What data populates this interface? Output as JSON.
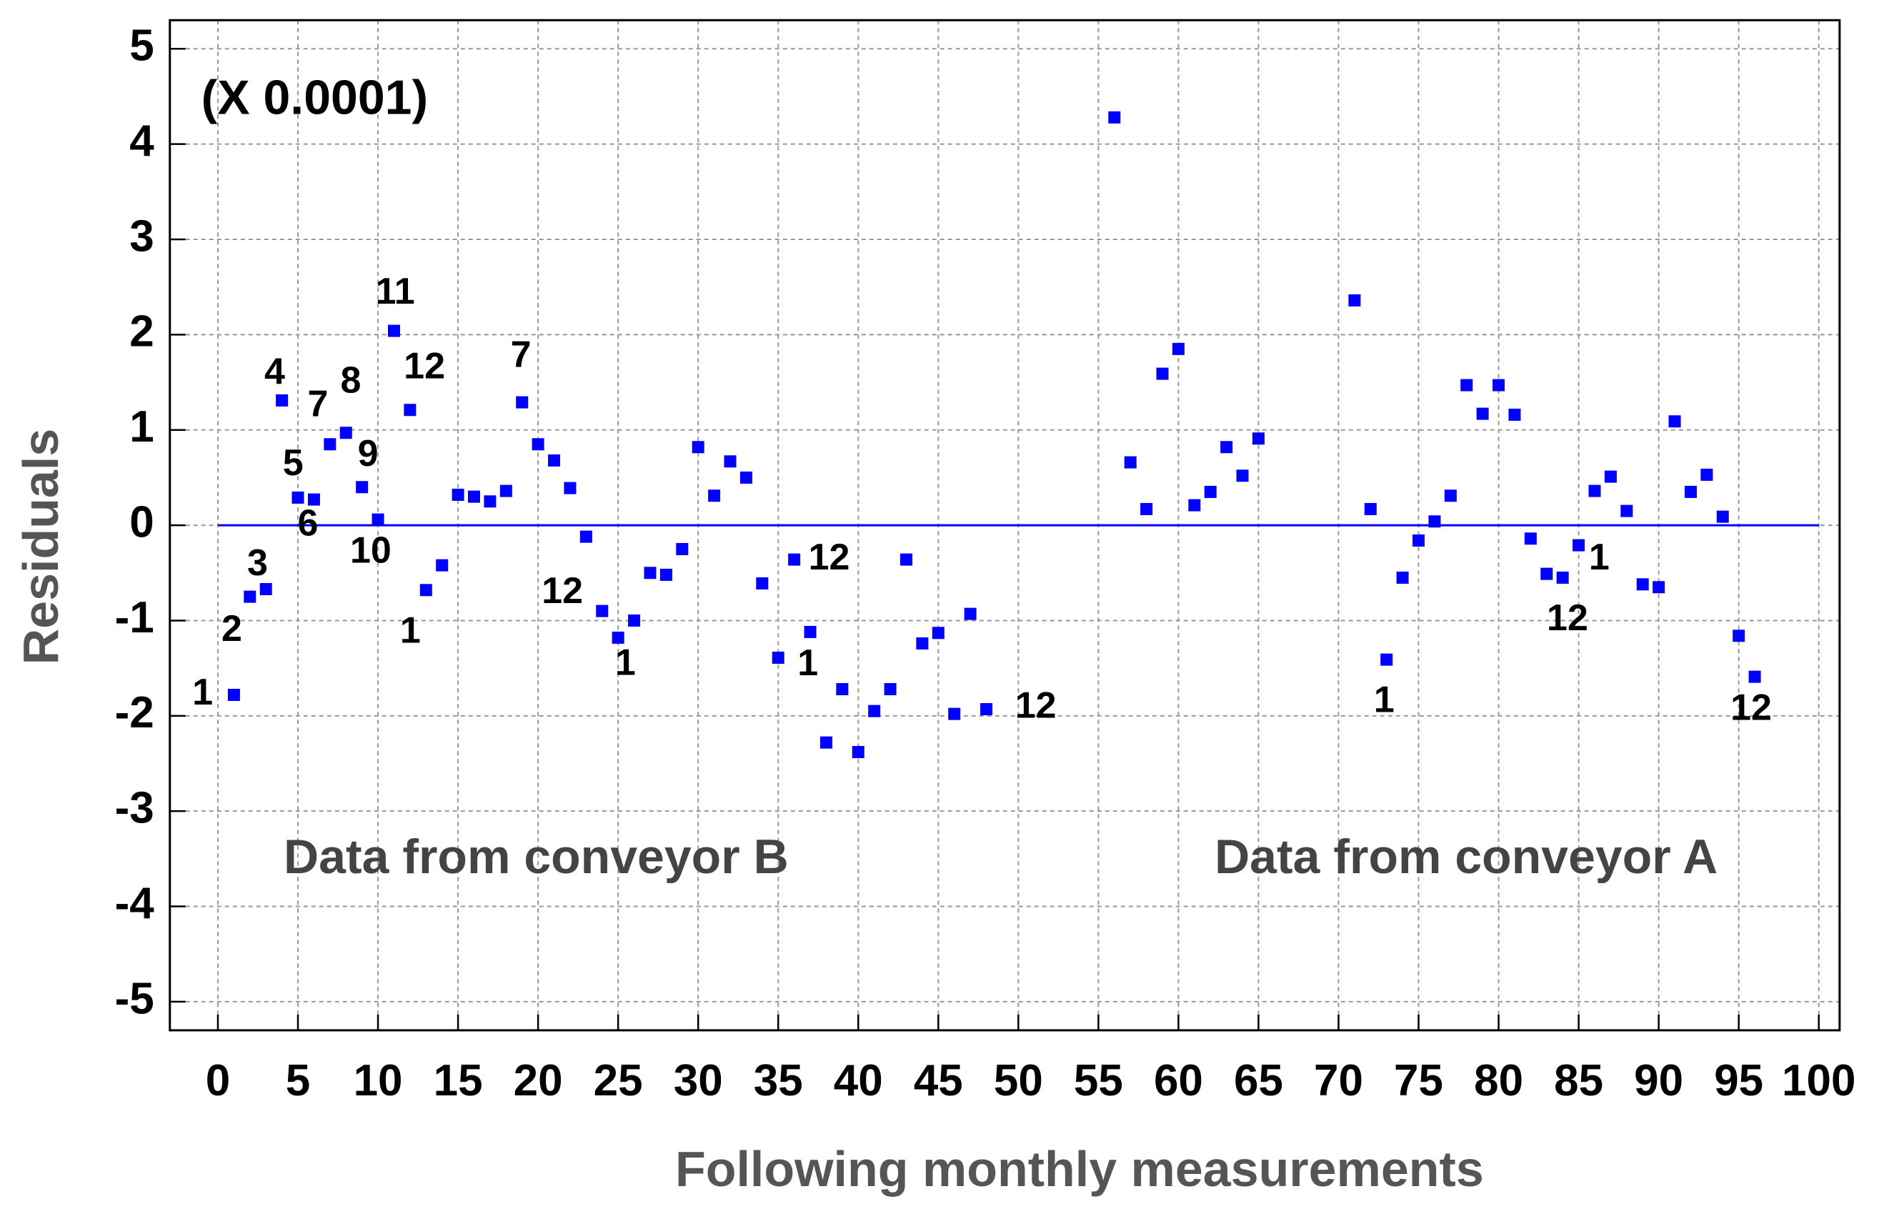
{
  "chart_data": {
    "type": "scatter",
    "xlabel": "Following monthly measurements",
    "ylabel": "Residuals",
    "annotations": [
      "(X 0.0001)",
      "Data from conveyor B",
      "Data from conveyor A"
    ],
    "xlim": [
      -3,
      101.3
    ],
    "ylim": [
      -5.3,
      5.3
    ],
    "xticks": [
      0,
      5,
      10,
      15,
      20,
      25,
      30,
      35,
      40,
      45,
      50,
      55,
      60,
      65,
      70,
      75,
      80,
      85,
      90,
      95,
      100
    ],
    "yticks": [
      -5,
      -4,
      -3,
      -2,
      -1,
      0,
      1,
      2,
      3,
      4,
      5
    ],
    "grid": true,
    "reference_line": {
      "y": 0,
      "xmin": 0,
      "xmax": 100,
      "color": "#0000ff"
    },
    "series": [
      {
        "color": "#0000ff",
        "x": [
          1,
          2,
          3,
          4,
          5,
          6,
          7,
          8,
          9,
          10,
          11,
          12,
          13,
          14,
          15,
          16,
          17,
          18,
          19,
          20,
          21,
          22,
          23,
          24,
          25,
          26,
          27,
          28,
          29,
          30,
          31,
          32,
          33,
          34,
          35,
          36,
          37,
          38,
          39,
          40,
          41,
          42,
          43,
          44,
          45,
          46,
          47,
          48,
          56,
          57,
          58,
          59,
          60,
          61,
          62,
          63,
          64,
          65,
          71,
          72,
          73,
          74,
          75,
          76,
          77,
          78,
          79,
          80,
          81,
          82,
          83,
          84,
          85,
          86,
          87,
          88,
          89,
          90,
          91,
          92,
          93,
          94,
          95,
          96
        ],
        "values": [
          -1.78,
          -0.75,
          -0.67,
          1.31,
          0.29,
          0.27,
          0.85,
          0.97,
          0.4,
          0.06,
          2.04,
          1.21,
          -0.68,
          -0.42,
          0.32,
          0.3,
          0.25,
          0.36,
          1.29,
          0.85,
          0.68,
          0.39,
          -0.12,
          -0.9,
          -1.18,
          -1.0,
          -0.5,
          -0.52,
          -0.25,
          0.82,
          0.31,
          0.67,
          0.5,
          -0.61,
          -1.39,
          -0.36,
          -1.12,
          -2.28,
          -1.72,
          -2.38,
          -1.95,
          -1.72,
          -0.36,
          -1.24,
          -1.13,
          -1.98,
          -0.93,
          -1.93,
          4.28,
          0.66,
          0.17,
          1.59,
          1.85,
          0.21,
          0.35,
          0.82,
          0.52,
          0.91,
          2.36,
          0.17,
          -1.41,
          -0.55,
          -0.16,
          0.04,
          0.31,
          1.47,
          1.17,
          1.47,
          1.16,
          -0.14,
          -0.51,
          -0.55,
          -0.21,
          0.36,
          0.51,
          0.15,
          -0.62,
          -0.65,
          1.09,
          0.35,
          0.53,
          0.09,
          -1.16,
          -1.59
        ],
        "point_labels": [
          "1",
          "2",
          "3",
          "4",
          "5",
          "6",
          "7",
          "8",
          "9",
          "10",
          "11",
          "12",
          "1",
          null,
          null,
          null,
          null,
          null,
          "7",
          null,
          null,
          null,
          null,
          "12",
          "1",
          null,
          null,
          null,
          null,
          null,
          null,
          null,
          null,
          null,
          null,
          "12",
          "1",
          null,
          null,
          null,
          null,
          null,
          null,
          null,
          null,
          null,
          null,
          "12",
          null,
          null,
          null,
          null,
          null,
          null,
          null,
          null,
          null,
          null,
          null,
          null,
          "1",
          null,
          null,
          null,
          null,
          null,
          null,
          null,
          null,
          null,
          null,
          "12",
          "1",
          null,
          null,
          null,
          null,
          null,
          null,
          null,
          null,
          null,
          null,
          "12"
        ]
      }
    ]
  }
}
